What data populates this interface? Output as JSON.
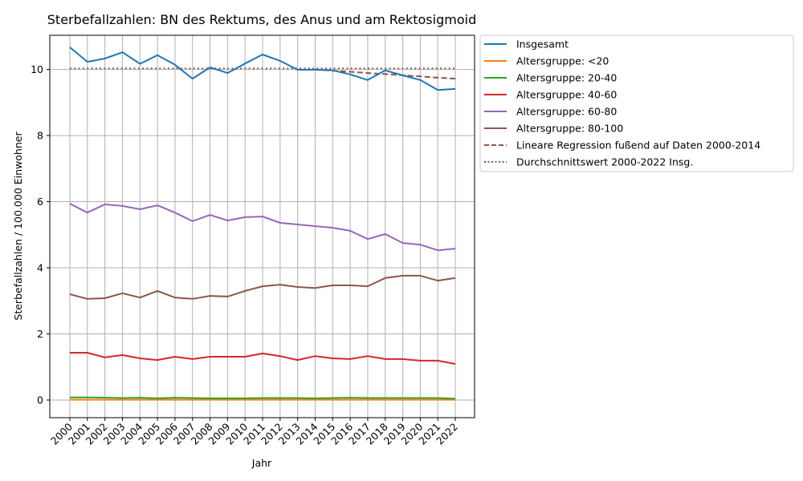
{
  "chart_data": {
    "type": "line",
    "title": "Sterbefallzahlen: BN des Rektums, des Anus und am Rektosigmoid",
    "xlabel": "Jahr",
    "ylabel": "Sterbefallzahlen / 100.000 Einwohner",
    "x": [
      2000,
      2001,
      2002,
      2003,
      2004,
      2005,
      2006,
      2007,
      2008,
      2009,
      2010,
      2011,
      2012,
      2013,
      2014,
      2015,
      2016,
      2017,
      2018,
      2019,
      2020,
      2021,
      2022
    ],
    "ylim": [
      -0.55,
      11.15
    ],
    "yticks": [
      0,
      2,
      4,
      6,
      8,
      10
    ],
    "grid": true,
    "legend_position": "outside upper right",
    "series": [
      {
        "name": "Insgesamt",
        "color": "#1f77b4",
        "style": "solid",
        "values": [
          10.67,
          10.23,
          10.33,
          10.52,
          10.17,
          10.43,
          10.14,
          9.72,
          10.06,
          9.89,
          10.18,
          10.45,
          10.26,
          9.99,
          9.99,
          9.97,
          9.85,
          9.68,
          9.97,
          9.82,
          9.68,
          9.38,
          9.41
        ]
      },
      {
        "name": "Altersgruppe: <20",
        "color": "#ff7f0e",
        "style": "solid",
        "values": [
          0.01,
          0.01,
          0.01,
          0.01,
          0.01,
          0.01,
          0.01,
          0.01,
          0.01,
          0.01,
          0.01,
          0.01,
          0.01,
          0.01,
          0.01,
          0.01,
          0.01,
          0.01,
          0.01,
          0.01,
          0.01,
          0.01,
          0.01
        ]
      },
      {
        "name": "Altersgruppe: 20-40",
        "color": "#2ca02c",
        "style": "solid",
        "values": [
          0.08,
          0.08,
          0.07,
          0.06,
          0.07,
          0.05,
          0.07,
          0.06,
          0.05,
          0.05,
          0.05,
          0.06,
          0.06,
          0.06,
          0.05,
          0.06,
          0.07,
          0.06,
          0.06,
          0.06,
          0.06,
          0.06,
          0.04
        ]
      },
      {
        "name": "Altersgruppe: 40-60",
        "color": "#d62728",
        "style": "solid",
        "values": [
          1.43,
          1.43,
          1.29,
          1.36,
          1.26,
          1.21,
          1.31,
          1.24,
          1.31,
          1.31,
          1.31,
          1.41,
          1.33,
          1.21,
          1.33,
          1.26,
          1.24,
          1.33,
          1.24,
          1.24,
          1.19,
          1.19,
          1.09
        ]
      },
      {
        "name": "Altersgruppe: 60-80",
        "color": "#9467bd",
        "style": "solid",
        "values": [
          5.94,
          5.67,
          5.92,
          5.87,
          5.77,
          5.89,
          5.67,
          5.41,
          5.6,
          5.43,
          5.53,
          5.55,
          5.36,
          5.31,
          5.26,
          5.21,
          5.12,
          4.87,
          5.02,
          4.75,
          4.7,
          4.53,
          4.58
        ]
      },
      {
        "name": "Altersgruppe: 80-100",
        "color": "#8c564b",
        "style": "solid",
        "values": [
          3.2,
          3.06,
          3.08,
          3.23,
          3.1,
          3.3,
          3.1,
          3.06,
          3.15,
          3.13,
          3.3,
          3.44,
          3.49,
          3.42,
          3.39,
          3.47,
          3.47,
          3.44,
          3.69,
          3.76,
          3.76,
          3.61,
          3.69
        ]
      },
      {
        "name": "Lineare Regression fußend auf Daten 2000-2014",
        "color": "#8c564b",
        "style": "dashed",
        "x": [
          2014,
          2015,
          2016,
          2017,
          2018,
          2019,
          2020,
          2021,
          2022
        ],
        "values": [
          10.0,
          9.96,
          9.93,
          9.89,
          9.86,
          9.82,
          9.79,
          9.75,
          9.72
        ]
      },
      {
        "name": "Durchschnittswert 2000-2022 Insg.",
        "color": "#8c564b",
        "style": "dotted",
        "x": [
          2000,
          2022
        ],
        "values": [
          10.03,
          10.03
        ]
      }
    ]
  },
  "legend": {
    "items": [
      {
        "label": "Insgesamt",
        "color": "#1f77b4",
        "dash": ""
      },
      {
        "label": "Altersgruppe: <20",
        "color": "#ff7f0e",
        "dash": ""
      },
      {
        "label": "Altersgruppe: 20-40",
        "color": "#2ca02c",
        "dash": ""
      },
      {
        "label": "Altersgruppe: 40-60",
        "color": "#d62728",
        "dash": ""
      },
      {
        "label": "Altersgruppe: 60-80",
        "color": "#9467bd",
        "dash": ""
      },
      {
        "label": "Altersgruppe: 80-100",
        "color": "#8c564b",
        "dash": ""
      },
      {
        "label": "Lineare Regression fußend auf Daten 2000-2014",
        "color": "#8c564b",
        "dash": "6,3"
      },
      {
        "label": "Durchschnittswert 2000-2022 Insg.",
        "color": "#8c564b",
        "dash": "2,2.5"
      }
    ]
  }
}
